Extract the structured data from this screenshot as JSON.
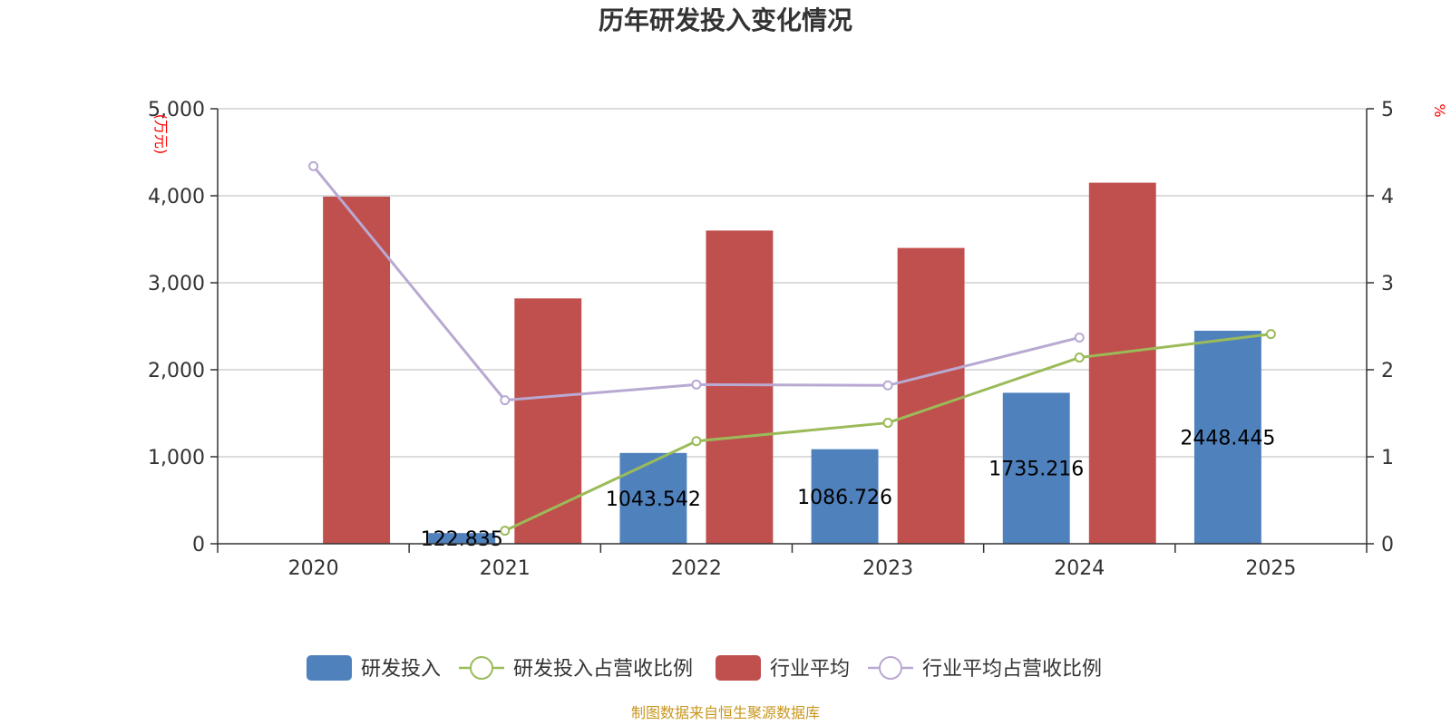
{
  "chart_data": {
    "type": "bar",
    "title": "历年研发投入变化情况",
    "categories": [
      "2020",
      "2021",
      "2022",
      "2023",
      "2024",
      "2025"
    ],
    "y_left": {
      "unit_label": "(万元)",
      "range": [
        0,
        5000
      ],
      "ticks": [
        "0",
        "1,000",
        "2,000",
        "3,000",
        "4,000",
        "5,000"
      ]
    },
    "y_right": {
      "unit_label": "%",
      "range": [
        0,
        5
      ],
      "ticks": [
        "0",
        "1",
        "2",
        "3",
        "4",
        "5"
      ]
    },
    "grid": true,
    "legend_position": "bottom",
    "series": [
      {
        "name": "研发投入",
        "type": "bar",
        "axis": "left",
        "color": "#4f81bd",
        "values": [
          null,
          122.835,
          1043.542,
          1086.726,
          1735.216,
          2448.445
        ],
        "labels": [
          "",
          "122.835",
          "1043.542",
          "1086.726",
          "1735.216",
          "2448.445"
        ]
      },
      {
        "name": "研发投入占营收比例",
        "type": "line",
        "axis": "right",
        "color": "#9bbb59",
        "values": [
          null,
          0.15,
          1.18,
          1.39,
          2.14,
          2.41
        ]
      },
      {
        "name": "行业平均",
        "type": "bar",
        "axis": "left",
        "color": "#c0504d",
        "values": [
          3990,
          2820,
          3600,
          3400,
          4150,
          null
        ]
      },
      {
        "name": "行业平均占营收比例",
        "type": "line",
        "axis": "right",
        "color": "#b9a9d2",
        "values": [
          4.34,
          1.65,
          1.83,
          1.82,
          2.37,
          null
        ]
      }
    ],
    "source": "制图数据来自恒生聚源数据库",
    "source_color": "#c8961e"
  }
}
